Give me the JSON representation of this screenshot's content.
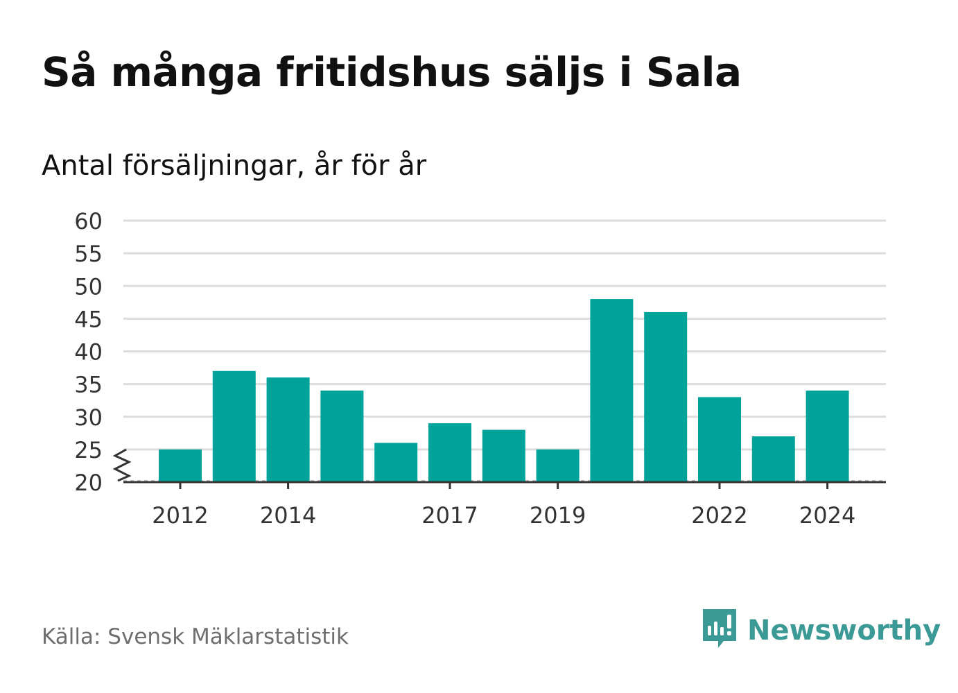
{
  "header": {
    "title": "Så många fritidshus säljs i Sala",
    "subtitle": "Antal försäljningar, år för år"
  },
  "footer": {
    "source": "Källa: Svensk Mäklarstatistik",
    "brand": "Newsworthy"
  },
  "colors": {
    "bar": "#00a39a",
    "grid": "#dddddd",
    "axis": "#333333",
    "brand": "#3b9a96"
  },
  "icons": {
    "brand_logo": "bar-chart-speech-bubble-icon",
    "axis_break": "zigzag-axis-break-icon"
  },
  "chart_data": {
    "type": "bar",
    "title": "Så många fritidshus säljs i Sala",
    "subtitle": "Antal försäljningar, år för år",
    "categories": [
      "2012",
      "2013",
      "2014",
      "2015",
      "2016",
      "2017",
      "2018",
      "2019",
      "2020",
      "2021",
      "2022",
      "2023",
      "2024"
    ],
    "values": [
      25,
      37,
      36,
      34,
      26,
      29,
      28,
      25,
      48,
      46,
      33,
      27,
      34
    ],
    "x_tick_labels": [
      "2012",
      "2014",
      "2017",
      "2019",
      "2022",
      "2024"
    ],
    "y_ticks": [
      20,
      25,
      30,
      35,
      40,
      45,
      50,
      55,
      60
    ],
    "ylim": [
      20,
      60
    ],
    "y_axis_break": true,
    "grid": true,
    "legend": "none"
  }
}
